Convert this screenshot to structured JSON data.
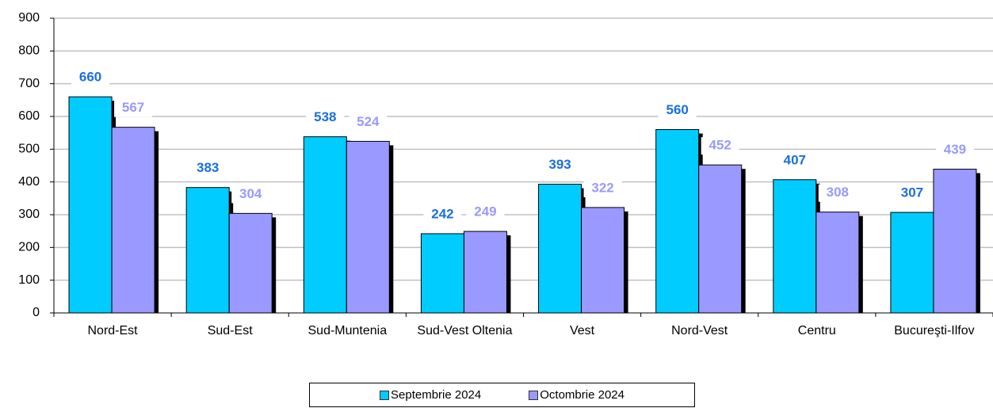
{
  "chart_data": {
    "type": "bar",
    "categories": [
      "Nord-Est",
      "Sud-Est",
      "Sud-Muntenia",
      "Sud-Vest Oltenia",
      "Vest",
      "Nord-Vest",
      "Centru",
      "Bucureşti-Ilfov"
    ],
    "series": [
      {
        "name": "Septembrie 2024",
        "color": "#00ccff",
        "label_color": "#1a6fe0",
        "values": [
          660,
          383,
          538,
          242,
          393,
          560,
          407,
          307
        ]
      },
      {
        "name": "Octombrie 2024",
        "color": "#9999ff",
        "label_color": "#9999ff",
        "values": [
          567,
          304,
          524,
          249,
          322,
          452,
          308,
          439
        ]
      }
    ],
    "ylim": [
      0,
      900
    ],
    "yticks": [
      0,
      100,
      200,
      300,
      400,
      500,
      600,
      700,
      800,
      900
    ],
    "grid": true,
    "legend": "bottom"
  }
}
